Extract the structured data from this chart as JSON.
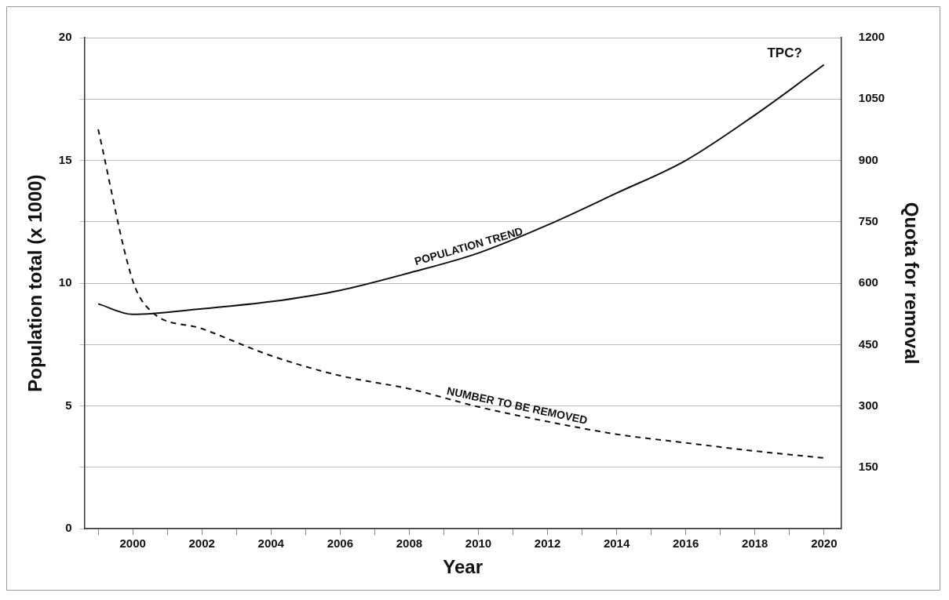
{
  "chart_data": {
    "type": "line",
    "xlabel": "Year",
    "ylabel": "Population total (x 1000)",
    "y2label": "Quota for removal",
    "xlim": [
      1998.6,
      2020.5
    ],
    "xticks": [
      {
        "value": 1999,
        "label": null
      },
      2000,
      {
        "value": 2001,
        "label": null
      },
      2002,
      {
        "value": 2003,
        "label": null
      },
      2004,
      {
        "value": 2005,
        "label": null
      },
      2006,
      {
        "value": 2007,
        "label": null
      },
      2008,
      {
        "value": 2009,
        "label": null
      },
      2010,
      {
        "value": 2011,
        "label": null
      },
      2012,
      {
        "value": 2013,
        "label": null
      },
      2014,
      {
        "value": 2015,
        "label": null
      },
      2016,
      {
        "value": 2017,
        "label": null
      },
      2018,
      {
        "value": 2019,
        "label": null
      },
      2020
    ],
    "ylim": [
      0,
      20
    ],
    "yticks": [
      0,
      {
        "value": 2.5,
        "label": null
      },
      5,
      {
        "value": 7.5,
        "label": null
      },
      10,
      {
        "value": 12.5,
        "label": null
      },
      15,
      {
        "value": 17.5,
        "label": null
      },
      20
    ],
    "y2lim": [
      0,
      1200
    ],
    "y2ticks": [
      150,
      300,
      450,
      600,
      750,
      900,
      1050,
      1200
    ],
    "grid": "y",
    "legend": false,
    "marker": "none",
    "series": [
      {
        "name": "POPULATION TREND",
        "color": "#111111",
        "line_style": "solid",
        "x": [
          1999,
          2000,
          2002,
          2004,
          2006,
          2008,
          2010,
          2012,
          2014,
          2016,
          2018,
          2020
        ],
        "values": [
          9.16,
          8.73,
          8.96,
          9.25,
          9.71,
          10.42,
          11.23,
          12.37,
          13.67,
          15.0,
          16.85,
          18.9
        ]
      },
      {
        "name": "NUMBER TO BE REMOVED",
        "color": "#111111",
        "line_style": "dashed",
        "axis": "y2",
        "x": [
          1999,
          2000,
          2000.5,
          2002,
          2004,
          2006,
          2008,
          2010,
          2012,
          2014,
          2016,
          2018,
          2020
        ],
        "values": [
          976,
          606,
          534,
          489,
          423,
          374,
          342,
          298,
          262,
          231,
          210,
          190,
          173
        ]
      }
    ],
    "annotations": [
      "TPC?"
    ]
  }
}
